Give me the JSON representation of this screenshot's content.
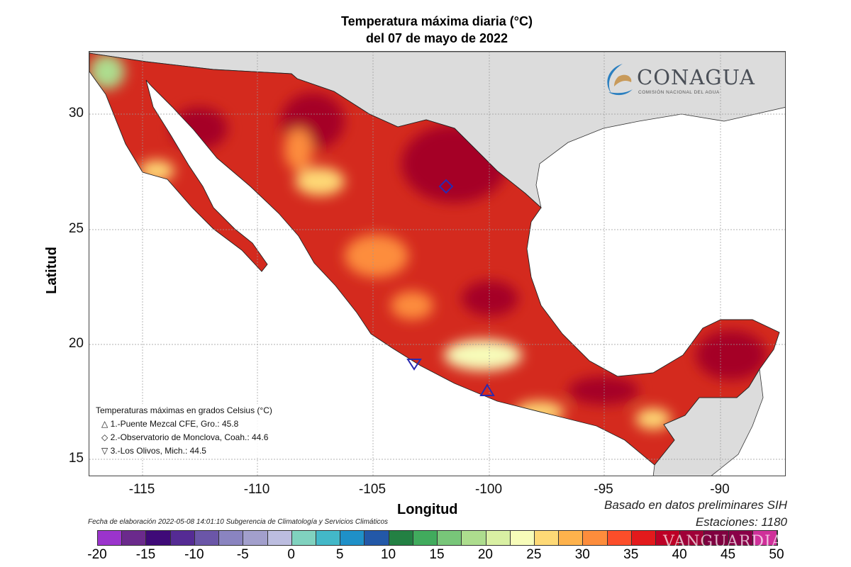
{
  "title": {
    "line1": "Temperatura máxima diaria (°C)",
    "line2": "del 07 de mayo de 2022"
  },
  "axes": {
    "xlabel": "Longitud",
    "ylabel": "Latitud",
    "xticks": [
      "-115",
      "-110",
      "-105",
      "-100",
      "-95",
      "-90"
    ],
    "yticks": [
      "30",
      "25",
      "20",
      "15"
    ]
  },
  "logo": {
    "name": "CONAGUA",
    "subtitle": "COMISIÓN NACIONAL DEL AGUA"
  },
  "legend": {
    "title": "Temperaturas máximas en grados Celsius (°C)",
    "items": [
      {
        "symbol": "△",
        "label": "1.-Puente Mezcal CFE, Gro.: 45.8",
        "marker": "triangle-up-icon"
      },
      {
        "symbol": "◇",
        "label": "2.-Observatorio de Monclova, Coah.: 44.6",
        "marker": "diamond-icon"
      },
      {
        "symbol": "▽",
        "label": "3.-Los Olivos, Mich.: 44.5",
        "marker": "triangle-down-icon"
      }
    ]
  },
  "footer": {
    "basado": "Basado en datos preliminares SIH",
    "estaciones": "Estaciones:  1180",
    "fecha": "Fecha de elaboración 2022-05-08 14:01:10 Subgerencia de Climatología y Servicios Climáticos"
  },
  "watermark": "VANGUARDIA",
  "colorbar": {
    "labels": [
      "-20",
      "-15",
      "-10",
      "-5",
      "0",
      "5",
      "10",
      "15",
      "20",
      "25",
      "30",
      "35",
      "40",
      "45",
      "50"
    ],
    "colors": [
      "#9b34cc",
      "#6b2a8c",
      "#3f0a78",
      "#552b94",
      "#6b56a8",
      "#8a84c0",
      "#a29fcc",
      "#bcbde0",
      "#80d2bf",
      "#43b8c8",
      "#1f90c8",
      "#2358a8",
      "#238043",
      "#41ab5d",
      "#78c679",
      "#addd8e",
      "#d9f0a3",
      "#f7fcb9",
      "#fed976",
      "#feb24c",
      "#fd8d3c",
      "#fc4e2a",
      "#e31a1c",
      "#bd0026",
      "#a00038",
      "#800040",
      "#8a0048",
      "#d0309a"
    ]
  },
  "map_colors": {
    "land_other": "#dcdcdc",
    "base": "#d42a1e",
    "hot": "#a50026",
    "warm": "#fd8d3c",
    "mild": "#fed976",
    "marker": "#2a2ab0"
  }
}
